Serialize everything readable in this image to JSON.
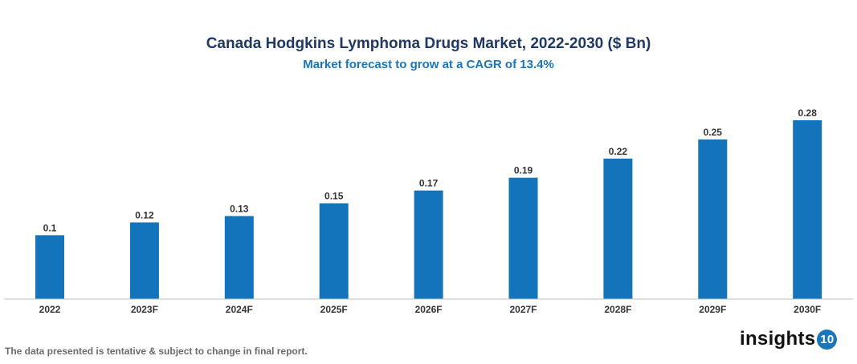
{
  "chart_data": {
    "type": "bar",
    "title": "Canada Hodgkins Lymphoma Drugs Market, 2022-2030 ($ Bn)",
    "subtitle": "Market forecast to grow at a CAGR of 13.4%",
    "categories": [
      "2022",
      "2023F",
      "2024F",
      "2025F",
      "2026F",
      "2027F",
      "2028F",
      "2029F",
      "2030F"
    ],
    "values": [
      0.1,
      0.12,
      0.13,
      0.15,
      0.17,
      0.19,
      0.22,
      0.25,
      0.28
    ],
    "xlabel": "",
    "ylabel": "",
    "ylim": [
      0,
      0.28
    ],
    "grid": false,
    "bar_color": "#1474bb"
  },
  "footer": "The data presented is tentative & subject to change in final report.",
  "logo": {
    "text": "insights",
    "badge": "10"
  }
}
